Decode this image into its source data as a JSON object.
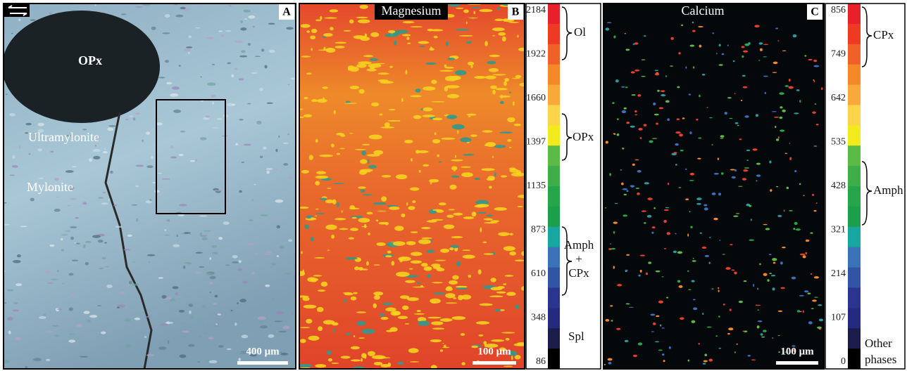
{
  "panels": [
    {
      "label": "A",
      "annotations": [
        "OPx",
        "Ultramylonite",
        "Mylonite"
      ],
      "scale_bar": "400 μm"
    },
    {
      "label": "B",
      "title": "Magnesium",
      "scale_bar": "100 μm",
      "colorbar_ticks": [
        2184,
        1922,
        1660,
        1397,
        1135,
        873,
        610,
        348,
        86
      ],
      "phases": [
        "Ol",
        "OPx",
        "Amph",
        "+",
        "CPx",
        "Spl"
      ]
    },
    {
      "label": "C",
      "title": "Calcium",
      "scale_bar": "100 μm",
      "colorbar_ticks": [
        856,
        749,
        642,
        535,
        428,
        321,
        214,
        107,
        0
      ],
      "phases": [
        "CPx",
        "Amph",
        "Other",
        "phases"
      ]
    }
  ]
}
